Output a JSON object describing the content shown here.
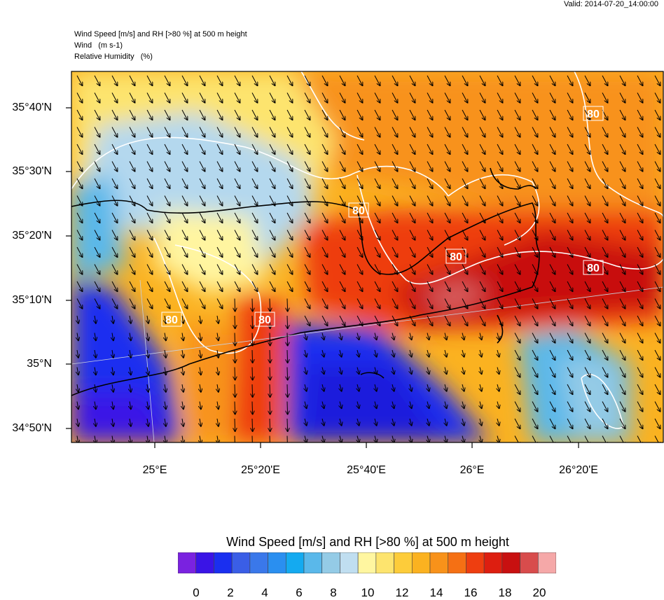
{
  "header": {
    "valid_time": "Valid: 2014-07-20_14:00:00",
    "title_lines": [
      "Wind Speed [m/s] and RH [>80 %] at 500 m height",
      "Wind   (m s-1)",
      "Relative Humidity   (%)"
    ]
  },
  "map": {
    "lat_labels": [
      "35°40'N",
      "35°30'N",
      "35°20'N",
      "35°10'N",
      "35°N",
      "34°50'N"
    ],
    "lon_labels": [
      "25°E",
      "25°20'E",
      "25°40'E",
      "26°E",
      "26°20'E"
    ],
    "contour_labels": [
      "80",
      "80",
      "80",
      "80",
      "80",
      "80"
    ],
    "colors": {
      "blue_deep": "#1a1adc",
      "light_blue": "#b4d8ee",
      "pale_yellow": "#fff5a0",
      "orange": "#f6a21a",
      "red": "#e02a10",
      "pink": "#d86060"
    }
  },
  "colorbar": {
    "title": "Wind Speed [m/s] and RH [>80 %] at 500 m height",
    "tick_labels": [
      "0",
      "2",
      "4",
      "6",
      "8",
      "10",
      "12",
      "14",
      "16",
      "18",
      "20"
    ],
    "colors": [
      "#7a22e0",
      "#3a14e6",
      "#1a2ff0",
      "#3a5ee6",
      "#3a78ea",
      "#2a8ff0",
      "#14aaf0",
      "#5ab8ea",
      "#94cbe6",
      "#c0def0",
      "#fff6a0",
      "#fde46e",
      "#fdcc3a",
      "#fbb220",
      "#f8921a",
      "#f57014",
      "#ee3e10",
      "#dd1e10",
      "#c81010",
      "#d84c4c",
      "#f5a8a8"
    ]
  }
}
